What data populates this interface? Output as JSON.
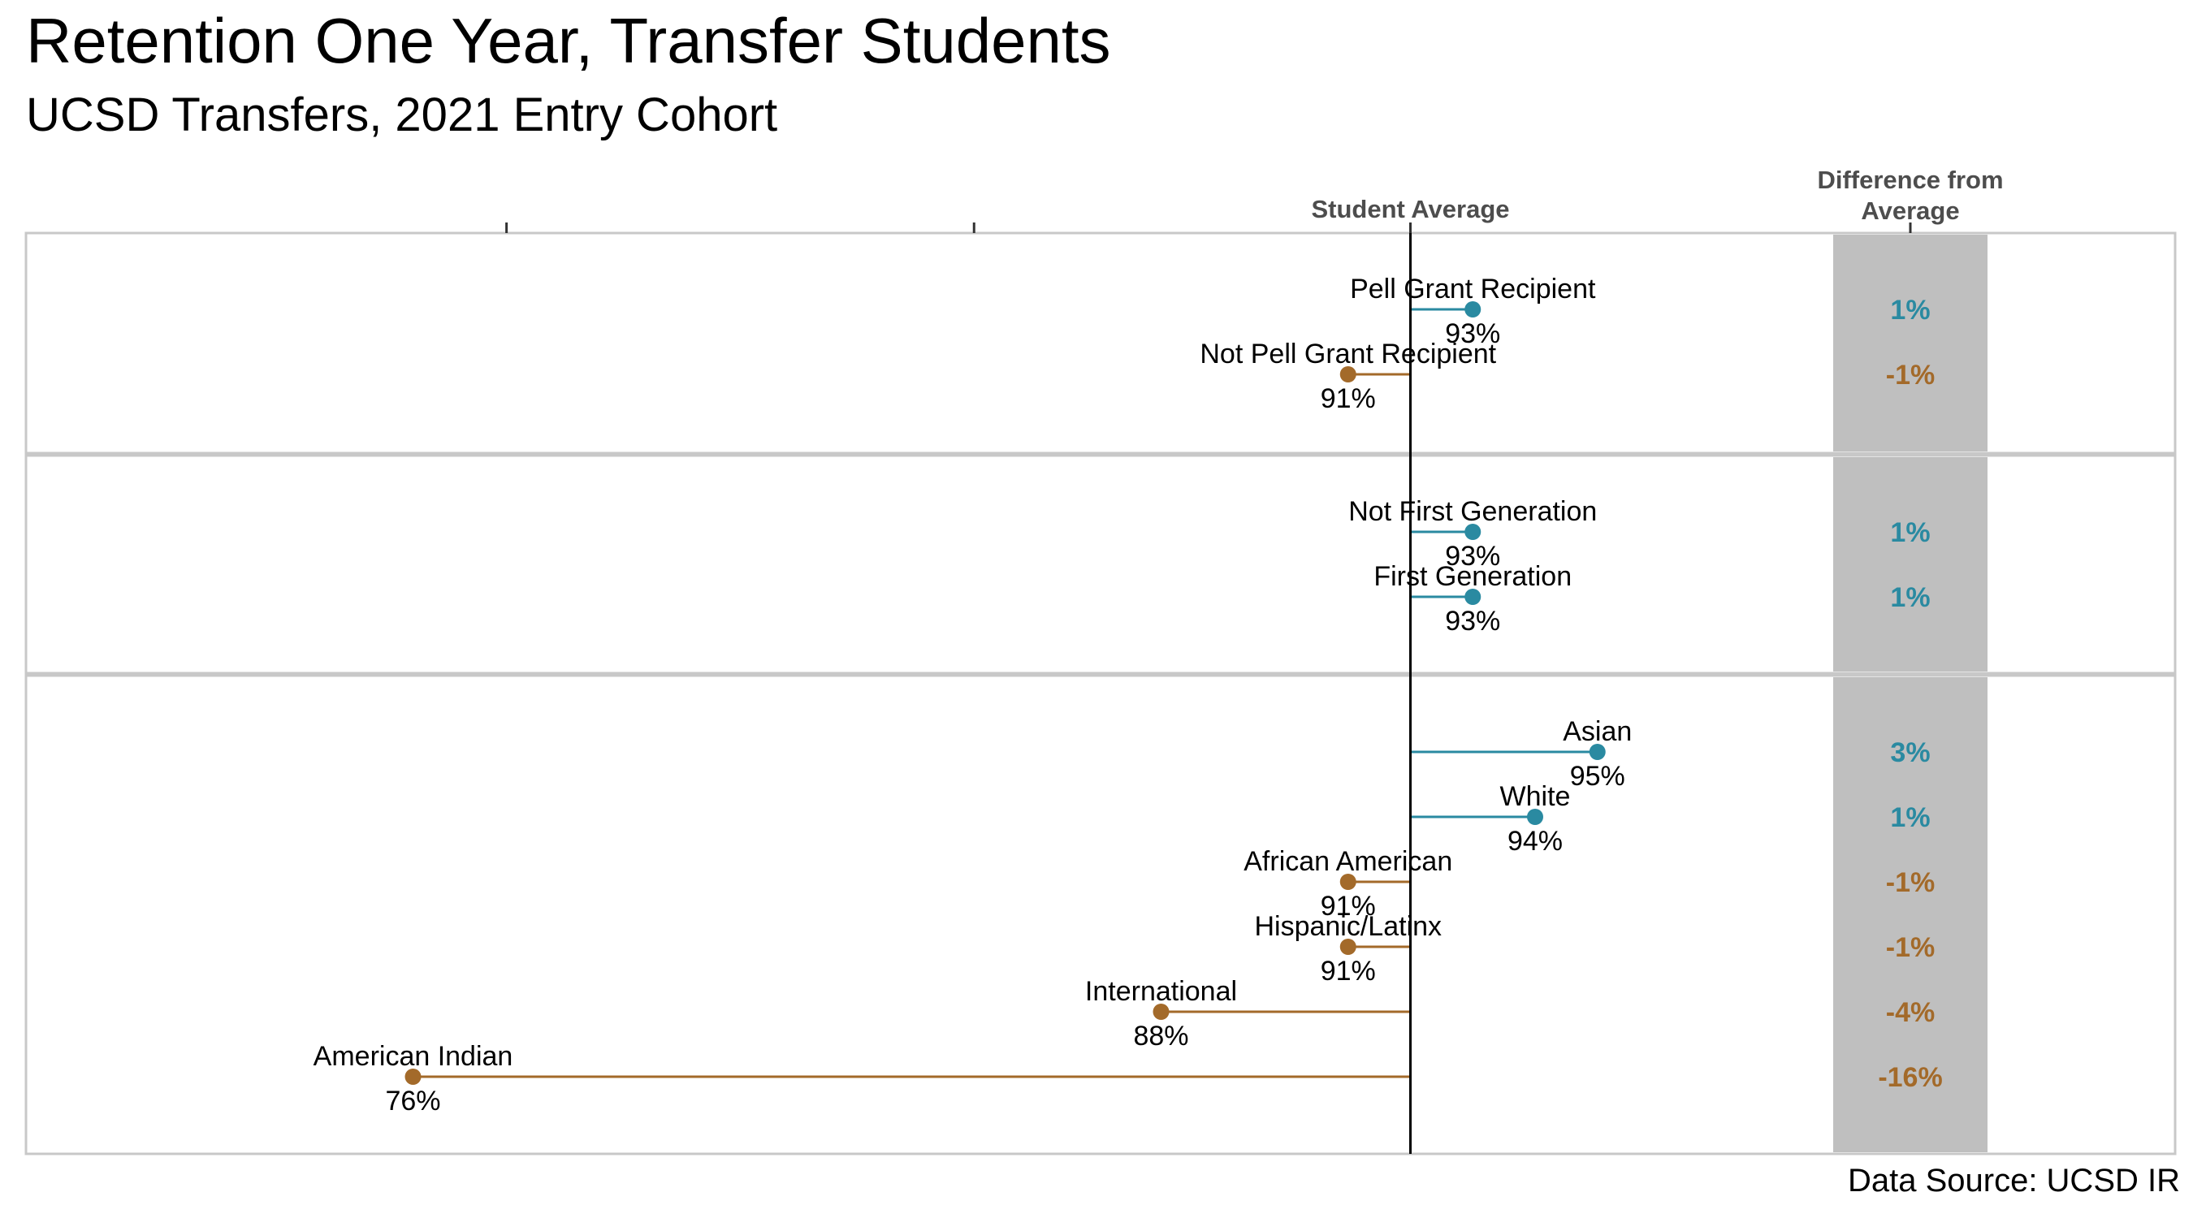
{
  "header": {
    "title": "Retention One Year, Transfer Students",
    "subtitle": "UCSD Transfers, 2021 Entry Cohort"
  },
  "footer": {
    "source": "Data Source: UCSD IR"
  },
  "colors": {
    "positive": "#2a8aa1",
    "negative": "#a36a2a",
    "diff_band": "#bfbfbf",
    "panel_border": "#c8c8c8",
    "axis_label": "#4d4d4d"
  },
  "chart_data": {
    "type": "lollipop",
    "average_label": "Student Average",
    "difference_header": "Difference from Average",
    "average": 92,
    "xlim": [
      74,
      98
    ],
    "panels": [
      {
        "groups": [
          {
            "label": "Pell Grant Recipient",
            "value": 93,
            "value_label": "93%",
            "diff_label": "1%",
            "direction": "positive"
          },
          {
            "label": "Not Pell Grant Recipient",
            "value": 91,
            "value_label": "91%",
            "diff_label": "-1%",
            "direction": "negative"
          }
        ]
      },
      {
        "groups": [
          {
            "label": "Not First Generation",
            "value": 93,
            "value_label": "93%",
            "diff_label": "1%",
            "direction": "positive"
          },
          {
            "label": "First Generation",
            "value": 93,
            "value_label": "93%",
            "diff_label": "1%",
            "direction": "positive"
          }
        ]
      },
      {
        "groups": [
          {
            "label": "Asian",
            "value": 95,
            "value_label": "95%",
            "diff_label": "3%",
            "direction": "positive"
          },
          {
            "label": "White",
            "value": 94,
            "value_label": "94%",
            "diff_label": "1%",
            "direction": "positive"
          },
          {
            "label": "African American",
            "value": 91,
            "value_label": "91%",
            "diff_label": "-1%",
            "direction": "negative"
          },
          {
            "label": "Hispanic/Latinx",
            "value": 91,
            "value_label": "91%",
            "diff_label": "-1%",
            "direction": "negative"
          },
          {
            "label": "International",
            "value": 88,
            "value_label": "88%",
            "diff_label": "-4%",
            "direction": "negative"
          },
          {
            "label": "American Indian",
            "value": 76,
            "value_label": "76%",
            "diff_label": "-16%",
            "direction": "negative"
          }
        ]
      }
    ]
  }
}
